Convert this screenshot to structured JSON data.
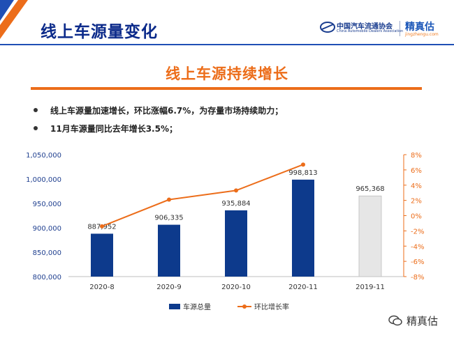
{
  "header": {
    "title": "线上车源量变化",
    "org_cn": "中国汽车流通协会",
    "org_en": "China Automobile Dealers Association",
    "brand_cn": "精真估",
    "brand_url": "jingzhengu.com"
  },
  "section_title": "线上车源持续增长",
  "bullets": [
    "线上车源量加速增长，环比涨幅6.7%，为存量市场持续助力；",
    "11月车源量同比去年增长3.5%；"
  ],
  "watermark": "精真估",
  "colors": {
    "title_blue": "#0b2a8a",
    "accent_orange": "#ec6d1a",
    "bar_blue": "#0d3a8c",
    "bar_gray": "#e6e6e6"
  },
  "chart_data": {
    "type": "bar",
    "categories": [
      "2020-8",
      "2020-9",
      "2020-10",
      "2020-11",
      "2019-11"
    ],
    "series": [
      {
        "name": "车源总量",
        "type": "bar",
        "axis": "left",
        "values": [
          887952,
          906335,
          935884,
          998813,
          965368
        ],
        "labels": [
          "887,952",
          "906,335",
          "935,884",
          "998,813",
          "965,368"
        ],
        "colors": [
          "#0d3a8c",
          "#0d3a8c",
          "#0d3a8c",
          "#0d3a8c",
          "#e6e6e6"
        ]
      },
      {
        "name": "环比增长率",
        "type": "line",
        "axis": "right",
        "values": [
          -1.4,
          2.1,
          3.3,
          6.7,
          null
        ],
        "color": "#ec6d1a"
      }
    ],
    "y_left": {
      "min": 800000,
      "max": 1050000,
      "step": 50000,
      "ticks": [
        "800,000",
        "850,000",
        "900,000",
        "950,000",
        "1,000,000",
        "1,050,000"
      ]
    },
    "y_right": {
      "min": -8,
      "max": 8,
      "step": 2,
      "ticks": [
        "-8%",
        "-6%",
        "-4%",
        "-2%",
        "0%",
        "2%",
        "4%",
        "6%",
        "8%"
      ]
    },
    "legend_position": "bottom",
    "grid": false
  }
}
